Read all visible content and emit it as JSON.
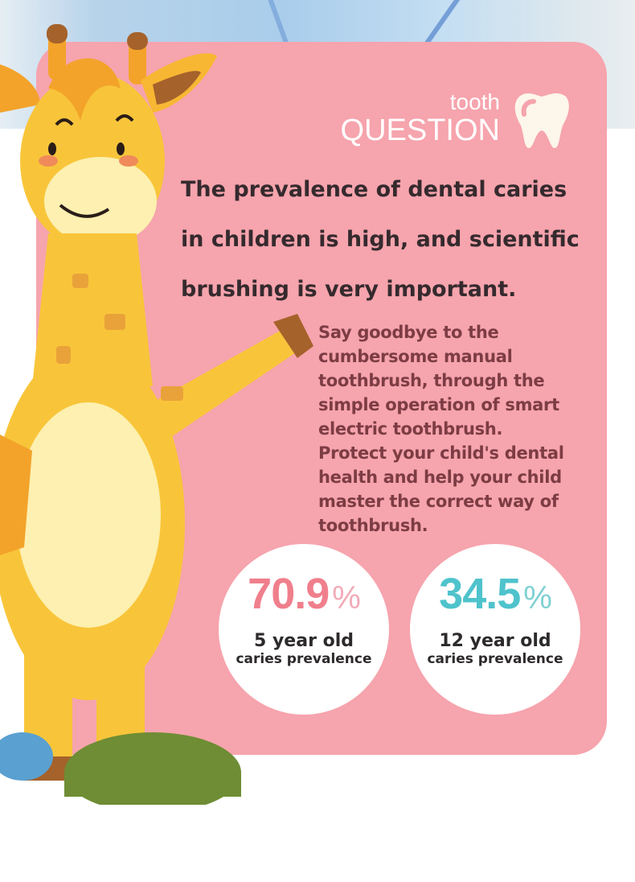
{
  "header": {
    "small": "tooth",
    "big": "QUESTION",
    "icon": "tooth-icon"
  },
  "headline": [
    "The prevalence of dental caries",
    "in children is high, and scientific",
    "brushing is very important."
  ],
  "paragraph": [
    "Say goodbye to the",
    "cumbersome manual",
    "toothbrush, through the",
    "simple operation of smart",
    "electric toothbrush.",
    "Protect your child's dental",
    "health and help your child",
    "master the correct way of",
    "toothbrush."
  ],
  "stats": [
    {
      "value": "70.9",
      "unit": "%",
      "line1": "5 year old",
      "line2": "caries prevalence",
      "color": "#f07f8c",
      "unit_color": "#f2aab8"
    },
    {
      "value": "34.5",
      "unit": "%",
      "line1": "12 year old",
      "line2": "caries prevalence",
      "color": "#4fc3cc",
      "unit_color": "#7fd0d2"
    }
  ],
  "colors": {
    "card": "#f6a4ad",
    "headline": "#352a2e",
    "paragraph": "#7d3c44"
  }
}
